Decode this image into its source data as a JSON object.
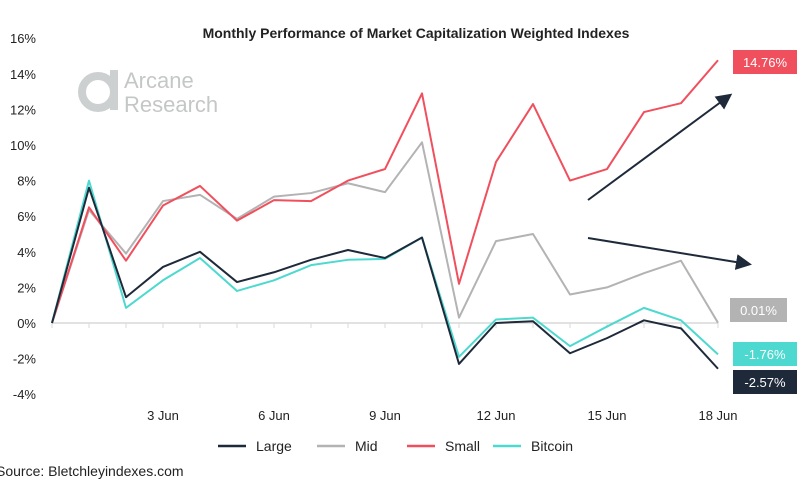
{
  "chart_data": {
    "type": "line",
    "title": "Monthly Performance of Market Capitalization Weighted Indexes",
    "xlabel": "",
    "ylabel": "",
    "x": [
      0,
      1,
      2,
      3,
      4,
      5,
      6,
      7,
      8,
      9,
      10,
      11,
      12,
      13,
      14,
      15,
      16,
      17,
      18
    ],
    "x_ticks": [
      {
        "value": 3,
        "label": "3 Jun"
      },
      {
        "value": 6,
        "label": "6 Jun"
      },
      {
        "value": 9,
        "label": "9 Jun"
      },
      {
        "value": 12,
        "label": "12 Jun"
      },
      {
        "value": 15,
        "label": "15 Jun"
      },
      {
        "value": 18,
        "label": "18 Jun"
      }
    ],
    "ylim": [
      -4,
      16
    ],
    "y_ticks": [
      {
        "value": 16,
        "label": "16%"
      },
      {
        "value": 14,
        "label": "14%"
      },
      {
        "value": 12,
        "label": "12%"
      },
      {
        "value": 10,
        "label": "10%"
      },
      {
        "value": 8,
        "label": "8%"
      },
      {
        "value": 6,
        "label": "6%"
      },
      {
        "value": 4,
        "label": "4%"
      },
      {
        "value": 2,
        "label": "2%"
      },
      {
        "value": 0,
        "label": "0%"
      },
      {
        "value": -2,
        "label": "-2%"
      },
      {
        "value": -4,
        "label": "-4%"
      }
    ],
    "grid": false,
    "legend_placement": "bottom",
    "series": [
      {
        "name": "Large",
        "color": "#1e2a3a",
        "end_label": "-2.57%",
        "values": [
          0,
          7.6,
          1.45,
          3.15,
          4.0,
          2.3,
          2.85,
          3.55,
          4.1,
          3.65,
          4.8,
          -2.3,
          0.0,
          0.1,
          -1.7,
          -0.85,
          0.15,
          -0.3,
          -2.57
        ]
      },
      {
        "name": "Mid",
        "color": "#b3b3b3",
        "end_label": "0.01%",
        "values": [
          0,
          6.35,
          3.9,
          6.85,
          7.2,
          5.85,
          7.1,
          7.3,
          7.85,
          7.35,
          10.15,
          0.3,
          4.6,
          5.0,
          1.6,
          2.0,
          2.8,
          3.5,
          0.01
        ]
      },
      {
        "name": "Small",
        "color": "#f0505e",
        "end_label": "14.76%",
        "values": [
          0,
          6.5,
          3.5,
          6.6,
          7.7,
          5.75,
          6.9,
          6.85,
          8.0,
          8.65,
          12.9,
          2.2,
          9.05,
          12.3,
          8.0,
          8.65,
          11.85,
          12.35,
          14.76
        ]
      },
      {
        "name": "Bitcoin",
        "color": "#4dd9cf",
        "end_label": "-1.76%",
        "values": [
          0,
          8.0,
          0.85,
          2.4,
          3.65,
          1.8,
          2.4,
          3.25,
          3.55,
          3.6,
          4.8,
          -1.9,
          0.2,
          0.3,
          -1.3,
          -0.2,
          0.85,
          0.15,
          -1.76
        ]
      }
    ],
    "annotations": [
      {
        "type": "arrow",
        "direction": "up",
        "color": "#1e2a3a"
      },
      {
        "type": "arrow",
        "direction": "slightly-down",
        "color": "#1e2a3a"
      }
    ]
  },
  "watermark": {
    "logo_text_1": "Arcane",
    "logo_text_2": "Research"
  },
  "source": "Source: Bletchleyindexes.com"
}
